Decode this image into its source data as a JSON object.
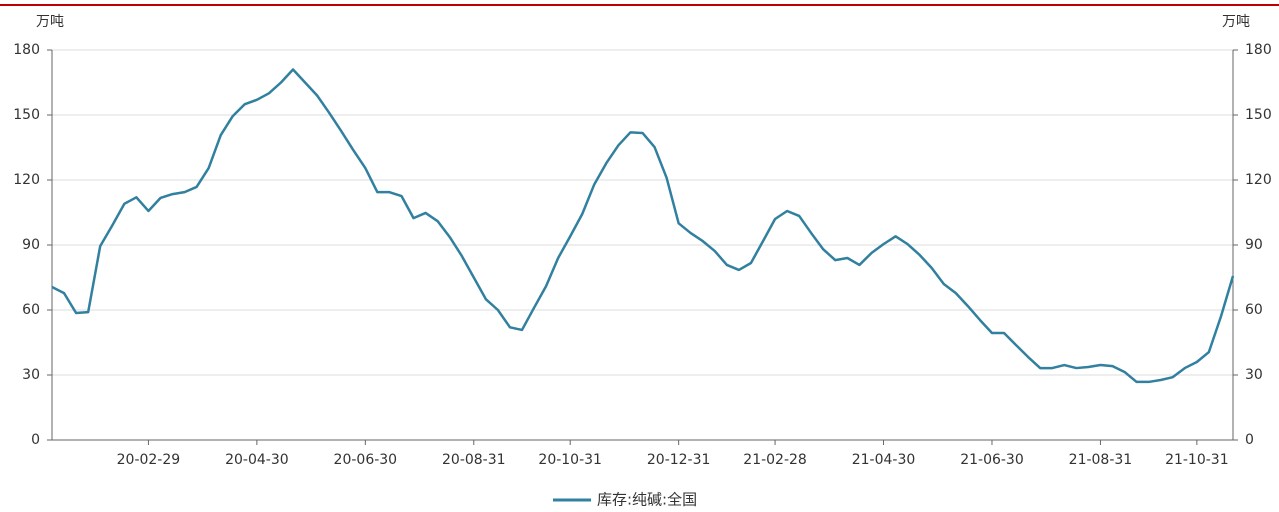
{
  "chart_data": {
    "type": "line",
    "y_unit": "万吨",
    "y2_unit": "万吨",
    "categories": [
      null,
      null,
      null,
      null,
      null,
      null,
      null,
      null,
      "20-02-29",
      null,
      null,
      null,
      null,
      null,
      null,
      null,
      null,
      "20-04-30",
      null,
      null,
      null,
      null,
      null,
      null,
      null,
      null,
      "20-06-30",
      null,
      null,
      null,
      null,
      null,
      null,
      null,
      null,
      "20-08-31",
      null,
      null,
      null,
      null,
      null,
      null,
      null,
      "20-10-31",
      null,
      null,
      null,
      null,
      null,
      null,
      null,
      null,
      "20-12-31",
      null,
      null,
      null,
      null,
      null,
      null,
      null,
      "21-02-28",
      null,
      null,
      null,
      null,
      null,
      null,
      null,
      null,
      "21-04-30",
      null,
      null,
      null,
      null,
      null,
      null,
      null,
      null,
      "21-06-30",
      null,
      null,
      null,
      null,
      null,
      null,
      null,
      null,
      "21-08-31",
      null,
      null,
      null,
      null,
      null,
      null,
      null,
      "21-10-31",
      null,
      null,
      null
    ],
    "series": [
      {
        "name": "库存:纯碱:全国",
        "color": "#31809f",
        "values": [
          70.6,
          67.8,
          58.6,
          59,
          89.5,
          99,
          109,
          112,
          105.7,
          111.7,
          113.5,
          114.4,
          116.8,
          125.5,
          140.7,
          149.5,
          155,
          157,
          160,
          165,
          171,
          165,
          159,
          151,
          142.6,
          133.8,
          125.5,
          114.4,
          114.4,
          112.6,
          102.4,
          104.8,
          101,
          93.7,
          85,
          75,
          65,
          60,
          52,
          50.8,
          61,
          71,
          84,
          94,
          104.3,
          118,
          127.8,
          136,
          142,
          141.7,
          135.2,
          121,
          100,
          95.5,
          91.8,
          87.2,
          80.8,
          78.5,
          81.7,
          91.8,
          102,
          105.7,
          103.4,
          95.5,
          88,
          83,
          84,
          80.8,
          86.3,
          90.4,
          94,
          90.4,
          85.4,
          79.4,
          72,
          67.8,
          61.8,
          55.4,
          49.4,
          49.4,
          43.8,
          38.3,
          33.2,
          33.2,
          34.6,
          33.2,
          33.7,
          34.6,
          34.1,
          31.4,
          26.8,
          26.8,
          27.7,
          29,
          33.2,
          36,
          40.6,
          57,
          75.7
        ]
      }
    ],
    "ylim": [
      0,
      180
    ],
    "yticks": [
      0,
      30,
      60,
      90,
      120,
      150,
      180
    ],
    "y2lim": [
      0,
      180
    ],
    "y2ticks": [
      0,
      30,
      60,
      90,
      120,
      150,
      180
    ],
    "grid": true,
    "legend": "bottom"
  }
}
